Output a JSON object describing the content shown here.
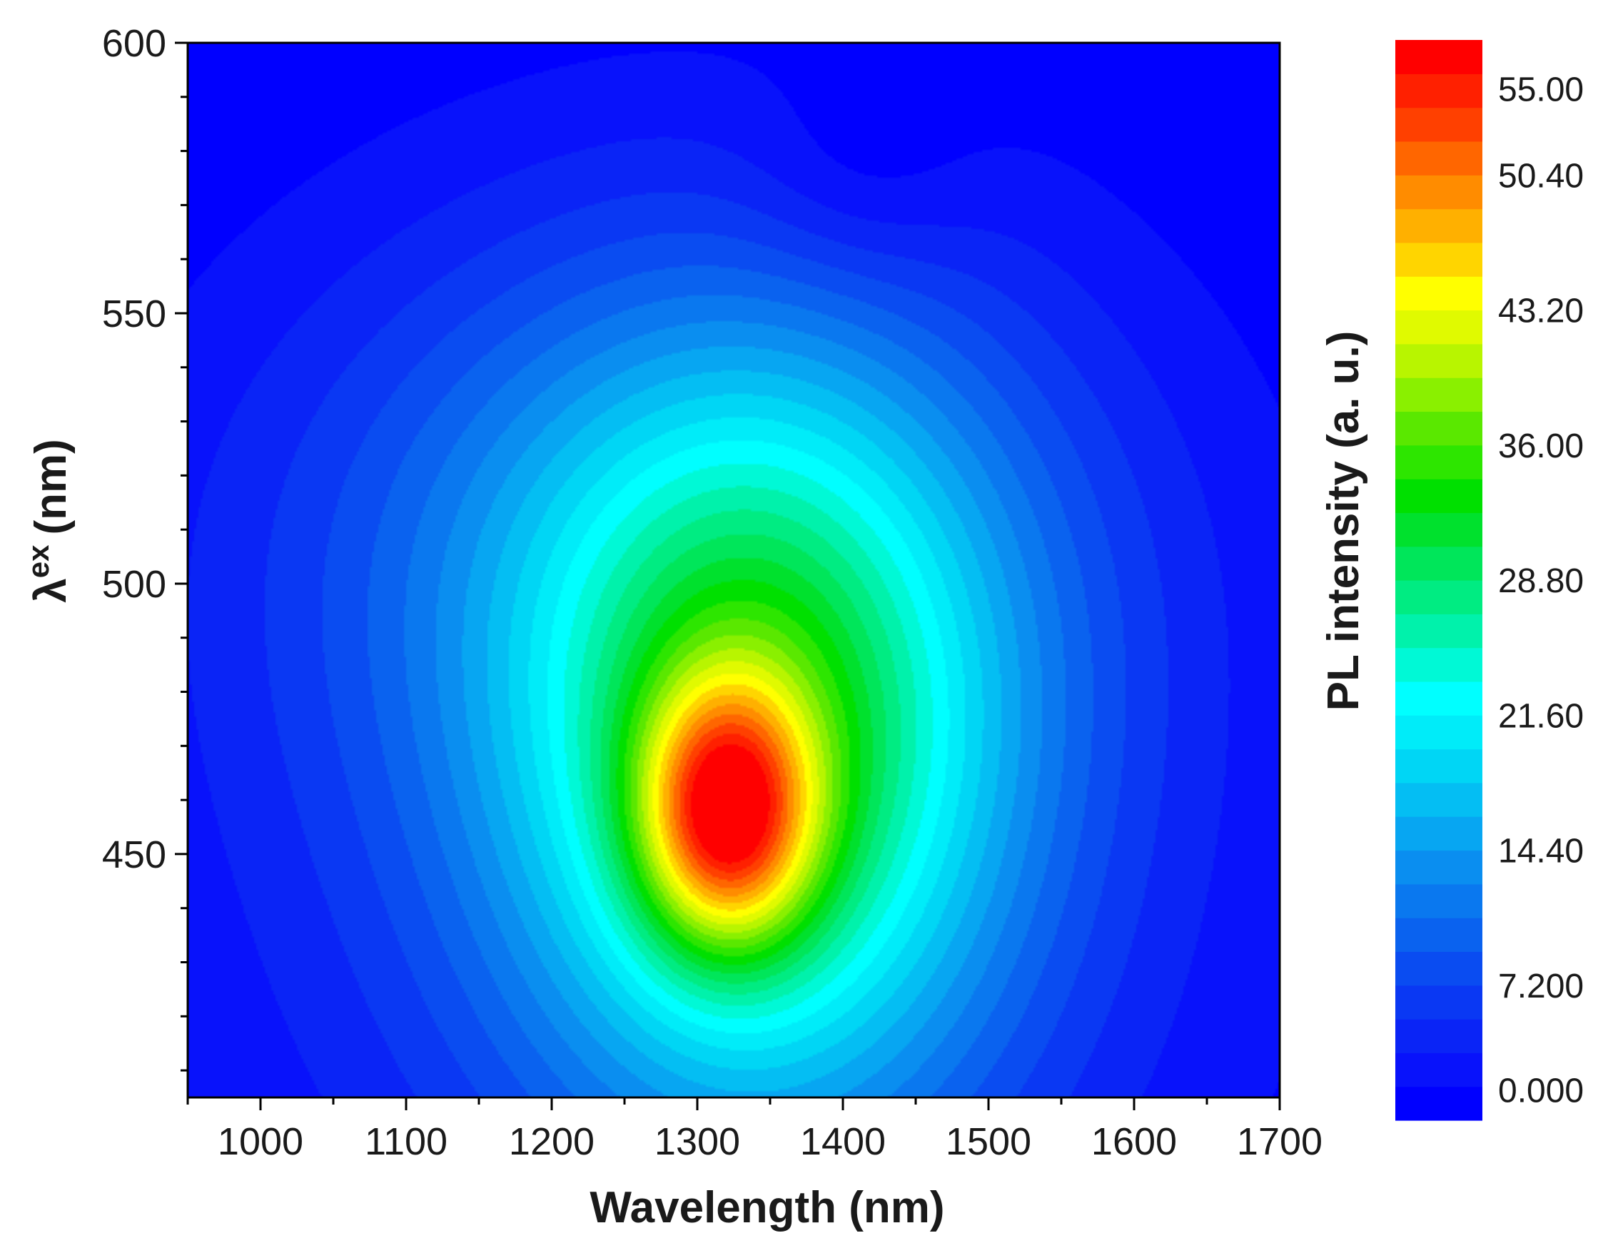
{
  "chart_data": {
    "type": "heatmap",
    "subtype": "filled-contour",
    "xlabel": "Wavelength (nm)",
    "ylabel": {
      "symbol": "λ",
      "superscript": "ex",
      "unit": "(nm)"
    },
    "xlim": [
      950,
      1700
    ],
    "ylim": [
      405,
      600
    ],
    "xticks": [
      "1000",
      "1100",
      "1200",
      "1300",
      "1400",
      "1500",
      "1600",
      "1700"
    ],
    "xtick_values": [
      1000,
      1100,
      1200,
      1300,
      1400,
      1500,
      1600,
      1700
    ],
    "yticks": [
      "450",
      "500",
      "550",
      "600"
    ],
    "ytick_values": [
      450,
      500,
      550,
      600
    ],
    "xminor_step": 50,
    "yminor_step": 10,
    "colorbar": {
      "title": "PL intensity (a. u.)",
      "min": 0,
      "max": 57.6,
      "levels": 32,
      "tick_labels": [
        "0.000",
        "7.200",
        "14.40",
        "21.60",
        "28.80",
        "36.00",
        "43.20",
        "50.40",
        "55.00"
      ],
      "tick_values": [
        0,
        7.2,
        14.4,
        21.6,
        28.8,
        36.0,
        43.2,
        50.4,
        55.0
      ],
      "colors": [
        "#0000ff",
        "#0812fb",
        "#0a24f6",
        "#0a38f3",
        "#0a4cf1",
        "#0a62ef",
        "#0a78ef",
        "#0a8ef0",
        "#07a6f2",
        "#04bef3",
        "#00d6f5",
        "#00ecf9",
        "#00ffff",
        "#00f9d6",
        "#00f2ab",
        "#00ec82",
        "#00e65a",
        "#00e12d",
        "#00e000",
        "#2de600",
        "#5ae800",
        "#8af000",
        "#b8f500",
        "#e0fa00",
        "#ffff00",
        "#ffd500",
        "#ffb000",
        "#ff8c00",
        "#ff6600",
        "#ff4000",
        "#ff2000",
        "#ff0000"
      ]
    },
    "peak": {
      "wavelength_nm": 1320,
      "excitation_nm": 457,
      "intensity": 55.0
    }
  }
}
